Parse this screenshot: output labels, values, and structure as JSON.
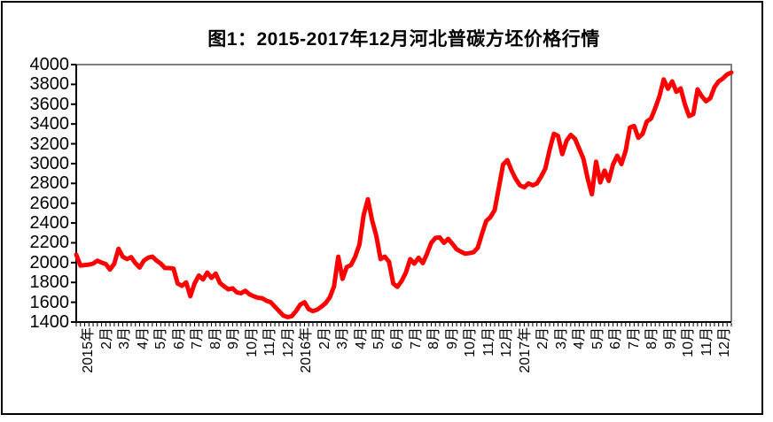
{
  "title": "图1：2015-2017年12月河北普碳方坯价格行情",
  "colors": {
    "line": "#ff0000",
    "axis": "#000000",
    "plot_border_top_right": "#7f7f7f",
    "background": "#ffffff",
    "outer_border": "#000000"
  },
  "chart_data": {
    "type": "line",
    "title": "图1：2015-2017年12月河北普碳方坯价格行情",
    "xlabel": "",
    "ylabel": "",
    "ylim": [
      1400,
      4000
    ],
    "y_ticks": [
      1400,
      1600,
      1800,
      2000,
      2200,
      2400,
      2600,
      2800,
      3000,
      3200,
      3400,
      3600,
      3800,
      4000
    ],
    "grid": "off",
    "legend": "none",
    "x_unit": "week",
    "x_labels": [
      "2015年",
      "2月",
      "3月",
      "4月",
      "5月",
      "6月",
      "7月",
      "8月",
      "9月",
      "10月",
      "11月",
      "12月",
      "2016年",
      "2月",
      "3月",
      "4月",
      "5月",
      "6月",
      "7月",
      "8月",
      "9月",
      "10月",
      "11月",
      "12月",
      "2017年",
      "2月",
      "3月",
      "4月",
      "5月",
      "6月",
      "7月",
      "8月",
      "9月",
      "10月",
      "11月",
      "12月"
    ],
    "series": [
      {
        "name": "河北普碳方坯价格",
        "color": "#ff0000",
        "values": [
          2080,
          1970,
          1975,
          1980,
          1990,
          2020,
          2000,
          1985,
          1930,
          1990,
          2140,
          2060,
          2035,
          2055,
          1995,
          1950,
          2020,
          2050,
          2060,
          2020,
          1990,
          1945,
          1945,
          1940,
          1790,
          1765,
          1800,
          1660,
          1790,
          1870,
          1830,
          1900,
          1845,
          1890,
          1795,
          1760,
          1730,
          1740,
          1700,
          1690,
          1715,
          1680,
          1660,
          1645,
          1640,
          1615,
          1600,
          1555,
          1510,
          1465,
          1450,
          1460,
          1510,
          1575,
          1600,
          1530,
          1510,
          1525,
          1555,
          1590,
          1650,
          1760,
          2060,
          1835,
          1955,
          1975,
          2060,
          2180,
          2480,
          2640,
          2430,
          2270,
          2035,
          2060,
          2010,
          1790,
          1755,
          1815,
          1900,
          2035,
          1990,
          2050,
          1995,
          2090,
          2200,
          2250,
          2255,
          2200,
          2240,
          2190,
          2135,
          2110,
          2090,
          2095,
          2105,
          2150,
          2290,
          2420,
          2460,
          2530,
          2760,
          2990,
          3035,
          2930,
          2845,
          2780,
          2760,
          2800,
          2780,
          2800,
          2870,
          2950,
          3140,
          3300,
          3280,
          3095,
          3230,
          3290,
          3250,
          3150,
          3050,
          2850,
          2690,
          3020,
          2810,
          2930,
          2825,
          2990,
          3080,
          2995,
          3130,
          3365,
          3380,
          3260,
          3300,
          3425,
          3455,
          3560,
          3680,
          3850,
          3755,
          3830,
          3725,
          3760,
          3600,
          3480,
          3500,
          3750,
          3680,
          3630,
          3660,
          3770,
          3830,
          3860,
          3900,
          3920
        ]
      }
    ]
  }
}
